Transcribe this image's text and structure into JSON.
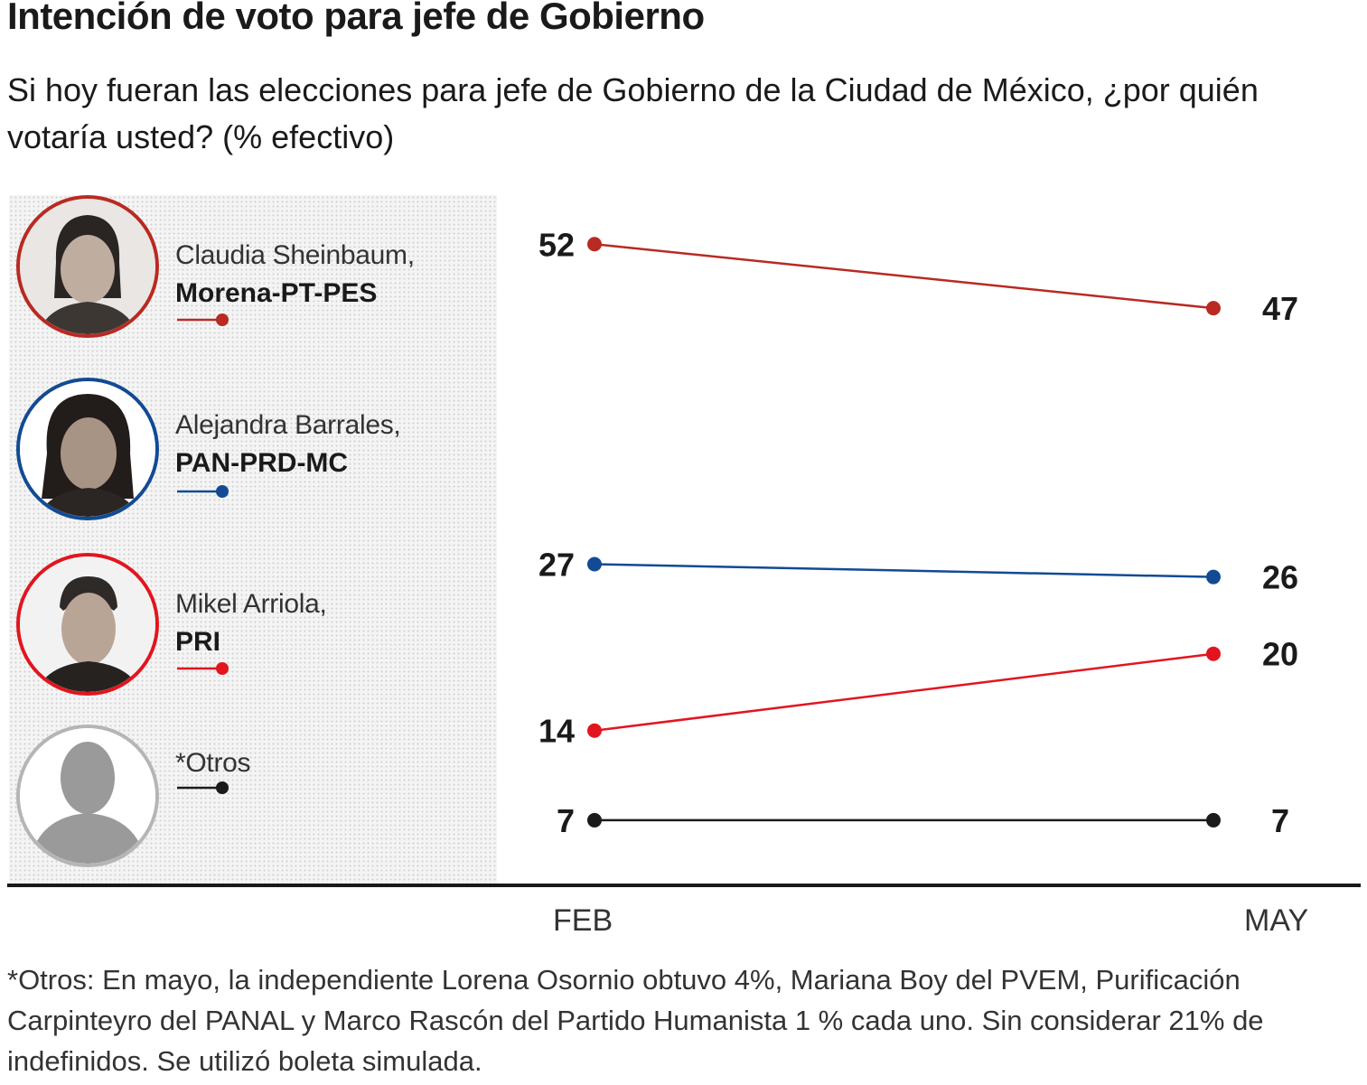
{
  "title": "Intención de voto para jefe de Gobierno",
  "subtitle": "Si hoy fueran las elecciones para jefe de Gobierno de la Ciudad de México, ¿por quién votaría usted? (% efectivo)",
  "candidates": [
    {
      "name": "Claudia Sheinbaum,",
      "party": "Morena-PT-PES",
      "color": "#b82a22",
      "icon": "portrait-photo"
    },
    {
      "name": "Alejandra Barrales,",
      "party": "PAN-PRD-MC",
      "color": "#124a94",
      "icon": "portrait-photo"
    },
    {
      "name": "Mikel Arriola,",
      "party": "PRI",
      "color": "#e2151f",
      "icon": "portrait-photo"
    },
    {
      "name": "*Otros",
      "party": "",
      "color": "#1a1a1a",
      "icon": "silhouette-icon"
    }
  ],
  "chart_data": {
    "type": "line",
    "title": "Intención de voto para jefe de Gobierno",
    "x": [
      "FEB",
      "MAY"
    ],
    "ylim": [
      0,
      55
    ],
    "grid": false,
    "legend": "left",
    "series": [
      {
        "name": "Claudia Sheinbaum, Morena-PT-PES",
        "values": [
          52,
          47
        ],
        "color": "#b82a22"
      },
      {
        "name": "Alejandra Barrales, PAN-PRD-MC",
        "values": [
          27,
          26
        ],
        "color": "#124a94"
      },
      {
        "name": "Mikel Arriola, PRI",
        "values": [
          14,
          20
        ],
        "color": "#e2151f"
      },
      {
        "name": "*Otros",
        "values": [
          7,
          7
        ],
        "color": "#1a1a1a"
      }
    ]
  },
  "axis": {
    "feb": "FEB",
    "may": "MAY"
  },
  "footnote": "*Otros: En mayo, la independiente Lorena Osornio obtuvo 4%, Mariana Boy del PVEM, Purificación Carpinteyro del PANAL y Marco Rascón del Partido Humanista 1 % cada uno. Sin considerar 21% de indefinidos. Se utilizó boleta simulada."
}
